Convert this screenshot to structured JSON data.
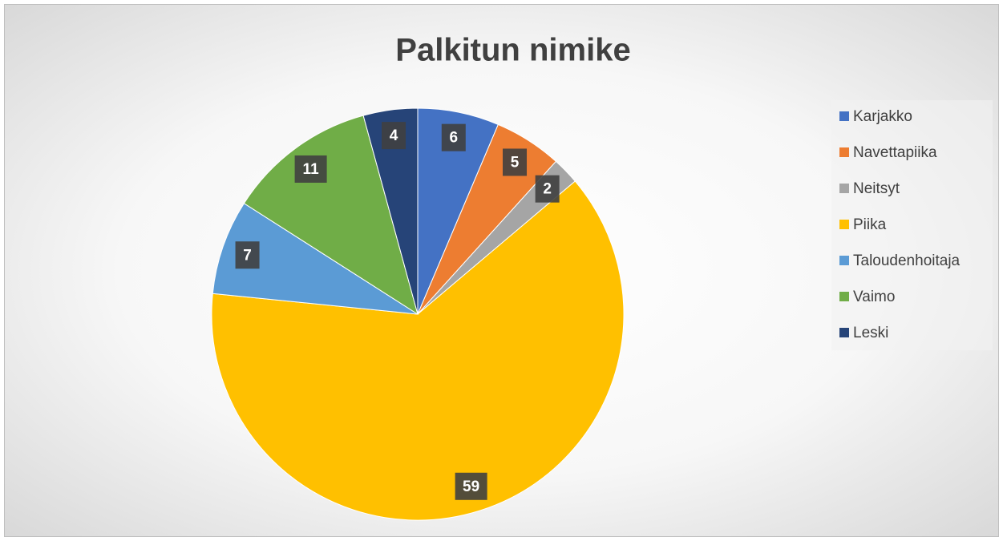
{
  "chart_data": {
    "type": "pie",
    "title": "Palkitun nimike",
    "categories": [
      "Karjakko",
      "Navettapiika",
      "Neitsyt",
      "Piika",
      "Taloudenhoitaja",
      "Vaimo",
      "Leski"
    ],
    "values": [
      6,
      5,
      2,
      59,
      7,
      11,
      4
    ],
    "colors": [
      "#4472c4",
      "#ed7d31",
      "#a5a5a5",
      "#ffc000",
      "#5b9bd5",
      "#70ad47",
      "#264478"
    ],
    "legend": "right"
  }
}
